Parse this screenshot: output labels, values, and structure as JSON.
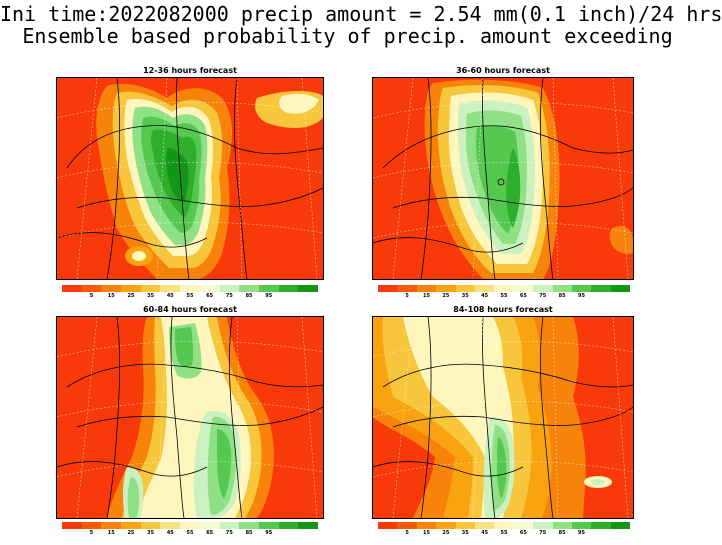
{
  "title": {
    "line1": "Ini time:2022082000 precip amount = 2.54 mm(0.1 inch)/24 hrs",
    "line2": "Ensemble based probability of precip. amount exceeding"
  },
  "colorbar": {
    "colors": [
      "#f83a0a",
      "#f85a0a",
      "#f8830a",
      "#f8a30f",
      "#f8c63c",
      "#f8e27f",
      "#fff6bd",
      "#f3fbd0",
      "#cbf1c1",
      "#90e085",
      "#55c84f",
      "#2fae2c",
      "#129619"
    ],
    "labels": [
      "5",
      "15",
      "25",
      "35",
      "45",
      "55",
      "65",
      "75",
      "85",
      "95"
    ]
  },
  "panels": [
    {
      "id": "p1",
      "title": "12-36 hours forecast"
    },
    {
      "id": "p2",
      "title": "36-60 hours forecast"
    },
    {
      "id": "p3",
      "title": "60-84 hours forecast"
    },
    {
      "id": "p4",
      "title": "84-108 hours forecast"
    }
  ],
  "icons": {
    "map": "probability-map"
  }
}
